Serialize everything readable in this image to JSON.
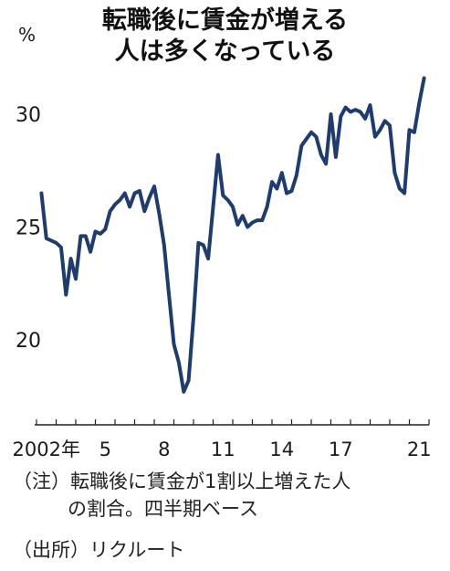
{
  "title_lines": [
    "転職後に賃金が増える",
    "人は多くなっている"
  ],
  "unit": "%",
  "notes": {
    "note1_line1": "（注）転職後に賃金が1割以上増えた人",
    "note1_line2": "の割合。四半期ベース",
    "source": "（出所）リクルート"
  },
  "colors": {
    "line": "#1f3c6e",
    "axis": "#222222",
    "text": "#1a1a1a"
  },
  "chart_data": {
    "type": "line",
    "title": "転職後に賃金が増える人は多くなっている",
    "ylabel": "%",
    "ylim": [
      17,
      33
    ],
    "yticks": [
      20,
      25,
      30
    ],
    "x_ticks": [
      {
        "label": "2002年",
        "x": 2002.0
      },
      {
        "label": "5",
        "x": 2005.0
      },
      {
        "label": "8",
        "x": 2008.0
      },
      {
        "label": "11",
        "x": 2011.0
      },
      {
        "label": "14",
        "x": 2014.0
      },
      {
        "label": "17",
        "x": 2017.0
      },
      {
        "label": "21",
        "x": 2021.0
      }
    ],
    "grid": false,
    "series": [
      {
        "name": "",
        "x": [
          2002.25,
          2002.5,
          2002.75,
          2003.0,
          2003.25,
          2003.5,
          2003.75,
          2004.0,
          2004.25,
          2004.5,
          2004.75,
          2005.0,
          2005.25,
          2005.5,
          2005.75,
          2006.0,
          2006.25,
          2006.5,
          2006.75,
          2007.0,
          2007.25,
          2007.5,
          2007.75,
          2008.0,
          2008.25,
          2008.5,
          2008.75,
          2009.0,
          2009.25,
          2009.5,
          2009.75,
          2010.0,
          2010.25,
          2010.5,
          2010.75,
          2011.0,
          2011.25,
          2011.5,
          2011.75,
          2012.0,
          2012.25,
          2012.5,
          2012.75,
          2013.0,
          2013.25,
          2013.5,
          2013.75,
          2014.0,
          2014.25,
          2014.5,
          2014.75,
          2015.0,
          2015.25,
          2015.5,
          2015.75,
          2016.0,
          2016.25,
          2016.5,
          2016.75,
          2017.0,
          2017.25,
          2017.5,
          2017.75,
          2018.0,
          2018.25,
          2018.5,
          2018.75,
          2019.0,
          2019.25,
          2019.5,
          2019.75,
          2020.0,
          2020.25,
          2020.5,
          2020.75,
          2021.0,
          2021.25,
          2021.5,
          2021.75
        ],
        "values": [
          26.5,
          24.5,
          24.4,
          24.3,
          24.1,
          22.0,
          23.6,
          22.7,
          24.6,
          24.6,
          23.9,
          24.8,
          24.7,
          24.9,
          25.7,
          26.0,
          26.2,
          26.5,
          25.9,
          26.5,
          26.6,
          25.7,
          26.3,
          26.8,
          25.6,
          24.2,
          22.0,
          19.8,
          19.0,
          17.7,
          18.2,
          21.0,
          24.3,
          24.2,
          23.6,
          25.9,
          28.2,
          26.4,
          26.2,
          25.9,
          25.1,
          25.5,
          25.0,
          25.2,
          25.3,
          25.3,
          25.9,
          27.0,
          26.7,
          27.4,
          26.5,
          26.6,
          27.3,
          28.6,
          28.9,
          29.2,
          29.0,
          28.2,
          27.8,
          30.0,
          28.1,
          29.9,
          30.3,
          30.1,
          30.2,
          30.1,
          29.8,
          30.4,
          29.0,
          29.3,
          29.7,
          29.5,
          27.4,
          26.7,
          26.5,
          29.3,
          29.2,
          30.5,
          31.6
        ]
      }
    ]
  }
}
